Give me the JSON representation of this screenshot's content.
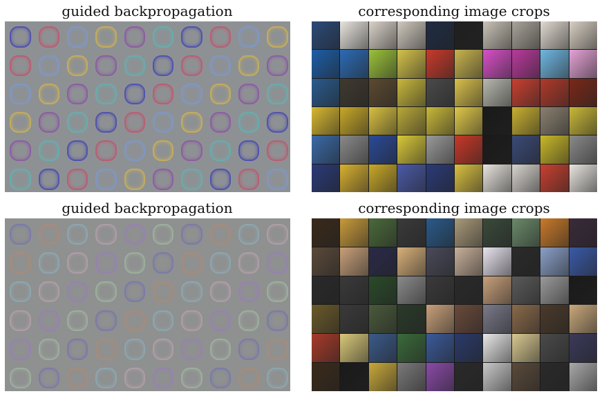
{
  "figure": {
    "top_left_heading": "guided backpropagation",
    "top_right_heading": "corresponding image crops",
    "bottom_left_heading": "guided backpropagation",
    "bottom_right_heading": "corresponding image crops"
  },
  "top_crops": [
    [
      "#2b4a78",
      "#e8e4df",
      "#d9d2c8",
      "#cfc8bd",
      "#1f2c44",
      "#202020",
      "#c9c2b6",
      "#a9a39a",
      "#e0d9cf",
      "#d8cfc2"
    ],
    [
      "#1d5ea8",
      "#2c6bb5",
      "#9ac23a",
      "#d4c24a",
      "#c83a2a",
      "#c8b44e",
      "#d850c8",
      "#b93a9c",
      "#6fb7e3",
      "#e5a2d6"
    ],
    [
      "#2a5b8e",
      "#3f3a30",
      "#5b4a30",
      "#c8b83c",
      "#4a4a4a",
      "#d8c04a",
      "#b8b8b0",
      "#c84030",
      "#b03a2a",
      "#7a2818"
    ],
    [
      "#d8b830",
      "#c8a828",
      "#d8c040",
      "#b8a838",
      "#c8b838",
      "#e0c848",
      "#1a1a1a",
      "#c8b030",
      "#8a8070",
      "#c8b838"
    ],
    [
      "#3a6aa8",
      "#8a8a8a",
      "#2a4a98",
      "#d8c838",
      "#9a9a9a",
      "#c83828",
      "#1a1a1a",
      "#3a4a78",
      "#c8b828",
      "#8a8a8a"
    ],
    [
      "#2a3a78",
      "#d8b030",
      "#c8a828",
      "#4a5aa8",
      "#2a3a78",
      "#d8c040",
      "#e8e4df",
      "#d8d4cf",
      "#c84030",
      "#e8e4df"
    ]
  ],
  "bottom_crops": [
    [
      "#3a2a1a",
      "#c89a3a",
      "#4a6a3a",
      "#3a3a3a",
      "#2a5a8a",
      "#a89a7a",
      "#3a4a3a",
      "#6a8a6a",
      "#c87a2a",
      "#3a2a3a"
    ],
    [
      "#5a4a3a",
      "#c8a07a",
      "#2a2a4a",
      "#d8b07a",
      "#4a4a5a",
      "#c8b09a",
      "#e8e4ef",
      "#2a2a2a",
      "#8aa0c8",
      "#3a5aa8"
    ],
    [
      "#2a2a2a",
      "#3a3a3a",
      "#2a4a2a",
      "#8a8a8a",
      "#3a3a3a",
      "#2a2a2a",
      "#c8a07a",
      "#5a5a5a",
      "#9a9a9a",
      "#1a1a1a"
    ],
    [
      "#6a5a2a",
      "#3a3a3a",
      "#4a5a3a",
      "#2a3a2a",
      "#c8a07a",
      "#6a4a3a",
      "#7a7a8a",
      "#8a6a4a",
      "#4a3a2a",
      "#c8a87a"
    ],
    [
      "#a83a2a",
      "#d8c878",
      "#3a5a8a",
      "#3a6a3a",
      "#3a5a9a",
      "#2a3a6a",
      "#e8e8e8",
      "#d8c890",
      "#4a4a4a",
      "#3a3a5a"
    ],
    [
      "#3a2a1a",
      "#1a1a1a",
      "#c8a83a",
      "#7a7a7a",
      "#8a4aa8",
      "#2a2a2a",
      "#c8c8c8",
      "#5a4a3a",
      "#2a2a2a",
      "#a8a8a8"
    ]
  ],
  "top_gb_colors": [
    "#3a3ab8",
    "#c84a6a",
    "#7a9ad8",
    "#d8b848",
    "#8a4aa8",
    "#5ab8b8"
  ],
  "bottom_gb_colors": [
    "#6a6ab8",
    "#b88a6a",
    "#8ab8c8",
    "#c8a8b8",
    "#9a7ac8",
    "#a8c8a8"
  ]
}
